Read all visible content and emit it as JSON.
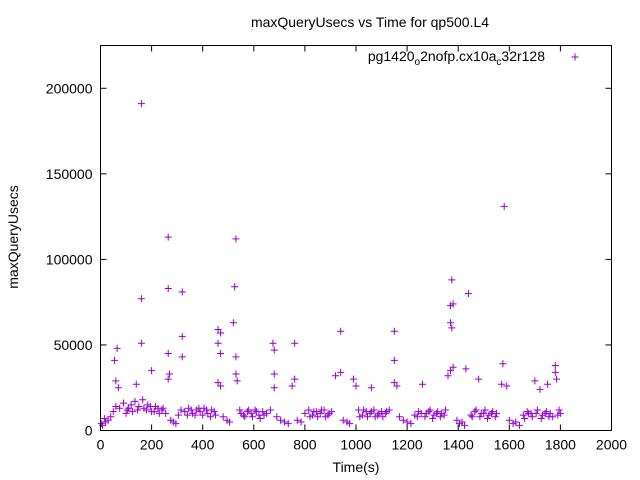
{
  "chart_data": {
    "type": "scatter",
    "title": "maxQueryUsecs vs Time for qp500.L4",
    "xlabel": "Time(s)",
    "ylabel": "maxQueryUsecs",
    "xlim": [
      0,
      2000
    ],
    "ylim": [
      0,
      225000
    ],
    "xticks": [
      "0",
      "200",
      "400",
      "600",
      "800",
      "1000",
      "1200",
      "1400",
      "1600",
      "1800",
      "2000"
    ],
    "yticks": [
      "0",
      "50000",
      "100000",
      "150000",
      "200000"
    ],
    "grid": false,
    "legend_position": "top-right",
    "marker": "plus",
    "series": [
      {
        "name_parts": {
          "a": "pg1420",
          "sub1": "o",
          "b": "2nofp.cx10a",
          "sub2": "c",
          "c": "32r128"
        },
        "color": "#9400d3",
        "points": [
          [
            160,
            191000
          ],
          [
            265,
            113000
          ],
          [
            530,
            112000
          ],
          [
            1580,
            131000
          ],
          [
            160,
            77000
          ],
          [
            265,
            83000
          ],
          [
            320,
            81000
          ],
          [
            525,
            84000
          ],
          [
            1375,
            88000
          ],
          [
            1440,
            80000
          ],
          [
            520,
            63000
          ],
          [
            1370,
            63000
          ],
          [
            1375,
            60000
          ],
          [
            1370,
            73000
          ],
          [
            1380,
            74000
          ],
          [
            460,
            59000
          ],
          [
            470,
            57000
          ],
          [
            320,
            55000
          ],
          [
            160,
            51000
          ],
          [
            460,
            51000
          ],
          [
            675,
            51000
          ],
          [
            760,
            51000
          ],
          [
            940,
            58000
          ],
          [
            1150,
            58000
          ],
          [
            55,
            41000
          ],
          [
            65,
            48000
          ],
          [
            265,
            45000
          ],
          [
            320,
            43000
          ],
          [
            470,
            45000
          ],
          [
            530,
            43000
          ],
          [
            680,
            47000
          ],
          [
            1150,
            41000
          ],
          [
            1430,
            36000
          ],
          [
            1575,
            39000
          ],
          [
            1780,
            38000
          ],
          [
            140,
            27000
          ],
          [
            200,
            35000
          ],
          [
            265,
            30000
          ],
          [
            270,
            33000
          ],
          [
            460,
            28000
          ],
          [
            470,
            26000
          ],
          [
            530,
            33000
          ],
          [
            535,
            29000
          ],
          [
            680,
            33000
          ],
          [
            680,
            25000
          ],
          [
            750,
            26000
          ],
          [
            760,
            30000
          ],
          [
            920,
            32000
          ],
          [
            940,
            34000
          ],
          [
            990,
            30000
          ],
          [
            1000,
            26000
          ],
          [
            1060,
            25000
          ],
          [
            1150,
            28000
          ],
          [
            1160,
            26000
          ],
          [
            1260,
            27000
          ],
          [
            1360,
            32000
          ],
          [
            1370,
            35000
          ],
          [
            1380,
            37000
          ],
          [
            1480,
            30000
          ],
          [
            1570,
            27000
          ],
          [
            1590,
            26000
          ],
          [
            1700,
            29000
          ],
          [
            1720,
            24000
          ],
          [
            1750,
            27000
          ],
          [
            1780,
            34000
          ],
          [
            1785,
            30000
          ],
          [
            60,
            29000
          ],
          [
            70,
            25000
          ],
          [
            3,
            4000
          ],
          [
            8,
            3000
          ],
          [
            15,
            7000
          ],
          [
            20,
            5000
          ],
          [
            30,
            6000
          ],
          [
            40,
            8000
          ],
          [
            50,
            11000
          ],
          [
            60,
            14000
          ],
          [
            75,
            13000
          ],
          [
            90,
            16000
          ],
          [
            105,
            12000
          ],
          [
            120,
            15000
          ],
          [
            135,
            17000
          ],
          [
            150,
            14000
          ],
          [
            165,
            18000
          ],
          [
            180,
            12000
          ],
          [
            195,
            14000
          ],
          [
            210,
            11000
          ],
          [
            225,
            13000
          ],
          [
            240,
            12000
          ],
          [
            255,
            10000
          ],
          [
            275,
            6000
          ],
          [
            285,
            5000
          ],
          [
            295,
            4000
          ],
          [
            305,
            9000
          ],
          [
            315,
            12000
          ],
          [
            330,
            11000
          ],
          [
            345,
            13000
          ],
          [
            360,
            10000
          ],
          [
            375,
            12000
          ],
          [
            390,
            11000
          ],
          [
            405,
            13000
          ],
          [
            420,
            10000
          ],
          [
            435,
            12000
          ],
          [
            450,
            9000
          ],
          [
            480,
            8000
          ],
          [
            495,
            6000
          ],
          [
            505,
            5000
          ],
          [
            545,
            12000
          ],
          [
            560,
            9000
          ],
          [
            575,
            11000
          ],
          [
            590,
            10000
          ],
          [
            605,
            12000
          ],
          [
            620,
            9000
          ],
          [
            635,
            11000
          ],
          [
            650,
            10000
          ],
          [
            665,
            12000
          ],
          [
            690,
            8000
          ],
          [
            705,
            6000
          ],
          [
            720,
            5000
          ],
          [
            735,
            4000
          ],
          [
            770,
            6000
          ],
          [
            785,
            5000
          ],
          [
            800,
            10000
          ],
          [
            815,
            12000
          ],
          [
            830,
            9000
          ],
          [
            845,
            11000
          ],
          [
            860,
            10000
          ],
          [
            875,
            12000
          ],
          [
            890,
            9000
          ],
          [
            905,
            11000
          ],
          [
            950,
            6000
          ],
          [
            965,
            5000
          ],
          [
            975,
            4000
          ],
          [
            1010,
            12000
          ],
          [
            1025,
            9000
          ],
          [
            1040,
            11000
          ],
          [
            1055,
            10000
          ],
          [
            1070,
            12000
          ],
          [
            1085,
            9000
          ],
          [
            1100,
            11000
          ],
          [
            1115,
            10000
          ],
          [
            1130,
            12000
          ],
          [
            1170,
            8000
          ],
          [
            1185,
            6000
          ],
          [
            1200,
            5000
          ],
          [
            1215,
            4000
          ],
          [
            1230,
            9000
          ],
          [
            1245,
            11000
          ],
          [
            1275,
            10000
          ],
          [
            1290,
            12000
          ],
          [
            1305,
            9000
          ],
          [
            1320,
            11000
          ],
          [
            1335,
            10000
          ],
          [
            1350,
            12000
          ],
          [
            1395,
            6000
          ],
          [
            1405,
            4000
          ],
          [
            1415,
            5000
          ],
          [
            1425,
            3000
          ],
          [
            1450,
            9000
          ],
          [
            1465,
            11000
          ],
          [
            1490,
            10000
          ],
          [
            1505,
            12000
          ],
          [
            1520,
            9000
          ],
          [
            1535,
            11000
          ],
          [
            1550,
            10000
          ],
          [
            1600,
            6000
          ],
          [
            1615,
            4000
          ],
          [
            1625,
            5000
          ],
          [
            1640,
            3000
          ],
          [
            1655,
            9000
          ],
          [
            1670,
            11000
          ],
          [
            1685,
            10000
          ],
          [
            1710,
            12000
          ],
          [
            1730,
            9000
          ],
          [
            1745,
            11000
          ],
          [
            1760,
            10000
          ],
          [
            1770,
            8000
          ],
          [
            1790,
            9000
          ],
          [
            1800,
            10000
          ],
          [
            100,
            10000
          ],
          [
            110,
            13000
          ],
          [
            125,
            11000
          ],
          [
            145,
            12000
          ],
          [
            170,
            13000
          ],
          [
            185,
            15000
          ],
          [
            200,
            11000
          ],
          [
            215,
            14000
          ],
          [
            230,
            10000
          ],
          [
            245,
            13000
          ],
          [
            340,
            9000
          ],
          [
            355,
            12000
          ],
          [
            370,
            9000
          ],
          [
            385,
            13000
          ],
          [
            400,
            9000
          ],
          [
            415,
            12000
          ],
          [
            430,
            8000
          ],
          [
            445,
            11000
          ],
          [
            550,
            10000
          ],
          [
            565,
            8000
          ],
          [
            580,
            12000
          ],
          [
            595,
            8000
          ],
          [
            610,
            11000
          ],
          [
            625,
            7000
          ],
          [
            640,
            9000
          ],
          [
            820,
            8000
          ],
          [
            835,
            11000
          ],
          [
            850,
            8000
          ],
          [
            865,
            12000
          ],
          [
            880,
            8000
          ],
          [
            895,
            10000
          ],
          [
            1015,
            8000
          ],
          [
            1030,
            12000
          ],
          [
            1045,
            8000
          ],
          [
            1060,
            11000
          ],
          [
            1075,
            8000
          ],
          [
            1090,
            10000
          ],
          [
            1105,
            8000
          ],
          [
            1120,
            11000
          ],
          [
            1240,
            8000
          ],
          [
            1255,
            10000
          ],
          [
            1270,
            8000
          ],
          [
            1285,
            11000
          ],
          [
            1300,
            7000
          ],
          [
            1315,
            10000
          ],
          [
            1330,
            8000
          ],
          [
            1345,
            9000
          ],
          [
            1455,
            8000
          ],
          [
            1470,
            12000
          ],
          [
            1485,
            8000
          ],
          [
            1500,
            10000
          ],
          [
            1515,
            7000
          ],
          [
            1530,
            10000
          ],
          [
            1545,
            8000
          ],
          [
            1660,
            7000
          ],
          [
            1675,
            10000
          ],
          [
            1690,
            8000
          ],
          [
            1705,
            10000
          ],
          [
            1725,
            7000
          ],
          [
            1740,
            10000
          ],
          [
            1755,
            8000
          ],
          [
            1795,
            12000
          ]
        ]
      }
    ]
  }
}
